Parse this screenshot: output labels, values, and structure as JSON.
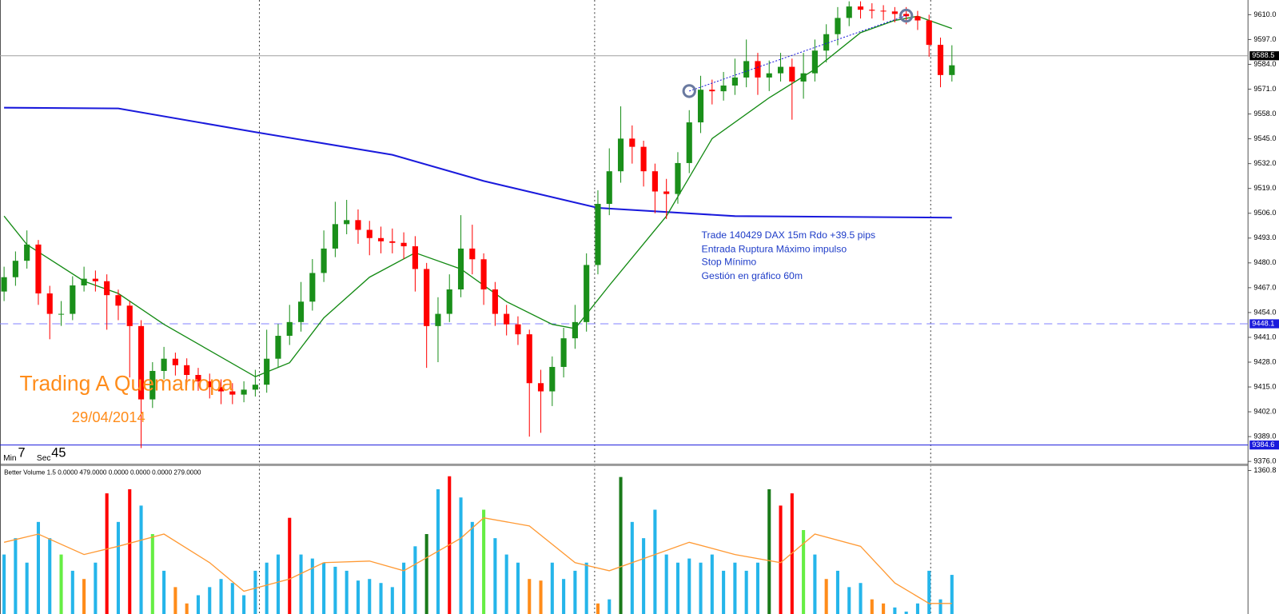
{
  "chart_data": [
    {
      "type": "candlestick",
      "up_color": "#1a8f1a",
      "down_color": "#ff0000",
      "open": [
        9465.0,
        9472.5,
        9481.1,
        9489.6,
        9464.0,
        9453.3,
        9453.3,
        9468.2,
        9471.7,
        9470.4,
        9463.1,
        9457.6,
        9446.9,
        9408.5,
        9423.4,
        9429.8,
        9426.4,
        9421.3,
        9417.9,
        9414.9,
        9412.7,
        9411.0,
        9413.6,
        9416.2,
        9429.8,
        9441.8,
        9449.0,
        9459.7,
        9474.7,
        9487.5,
        9500.3,
        9502.4,
        9497.3,
        9493.0,
        9491.3,
        9490.5,
        9488.7,
        9476.8,
        9446.9,
        9453.3,
        9466.1,
        9487.5,
        9481.9,
        9466.1,
        9453.3,
        9447.8,
        9442.6,
        9417.0,
        9412.7,
        9425.5,
        9440.5,
        9449.0,
        9478.9,
        9510.9,
        9528.0,
        9545.1,
        9540.8,
        9528.0,
        9517.4,
        9516.1,
        9532.3,
        9553.6,
        9570.7,
        9569.9,
        9572.9,
        9577.1,
        9585.7,
        9577.1,
        9579.3,
        9582.7,
        9575.0,
        9579.3,
        9591.2,
        9599.8,
        9608.3,
        9614.3,
        9612.6,
        9612.1,
        9611.7,
        9610.4,
        9609.2,
        9607.0,
        9594.2,
        9578.4
      ],
      "high": [
        9478,
        9486,
        9497,
        9492,
        9468,
        9460,
        9473,
        9478,
        9476,
        9474,
        9466,
        9460,
        9450,
        9428,
        9436,
        9433,
        9430,
        9425,
        9422,
        9419,
        9417,
        9418,
        9424,
        9445,
        9448,
        9458,
        9470,
        9482,
        9497,
        9512,
        9513,
        9508,
        9502,
        9499,
        9498,
        9496,
        9494,
        9480,
        9462,
        9474,
        9505,
        9500,
        9485,
        9470,
        9458,
        9452,
        9445,
        9424,
        9431,
        9446,
        9458,
        9485,
        9518,
        9540,
        9562,
        9552,
        9544,
        9532,
        9524,
        9538,
        9560,
        9578,
        9576,
        9580,
        9587,
        9597,
        9590,
        9586,
        9590,
        9587,
        9590,
        9597,
        9605,
        9614,
        9617,
        9617,
        9616,
        9615,
        9614,
        9614,
        9612,
        9610,
        9598,
        9594
      ],
      "low": [
        9460,
        9468,
        9477,
        9458,
        9440,
        9447,
        9450,
        9465,
        9465,
        9445,
        9450,
        9420,
        9383,
        9404,
        9419,
        9421,
        9416,
        9413,
        9409,
        9406,
        9406,
        9407,
        9410,
        9412,
        9425,
        9437,
        9444,
        9455,
        9470,
        9483,
        9495,
        9490,
        9484,
        9485,
        9485,
        9482,
        9465,
        9425,
        9428,
        9449,
        9462,
        9474,
        9458,
        9447,
        9442,
        9437,
        9389,
        9391,
        9405,
        9420,
        9435,
        9444,
        9474,
        9505,
        9522,
        9532,
        9520,
        9506,
        9503,
        9511,
        9527,
        9548,
        9563,
        9565,
        9568,
        9572,
        9568,
        9570,
        9575,
        9555,
        9566,
        9575,
        9585,
        9594,
        9604,
        9608,
        9608,
        9607,
        9606,
        9605,
        9602,
        9588,
        9572,
        9575
      ],
      "close": [
        9472.5,
        9481.1,
        9489.6,
        9464.0,
        9453.3,
        9453.3,
        9468.2,
        9471.7,
        9470.4,
        9463.1,
        9457.6,
        9446.9,
        9408.5,
        9423.4,
        9429.8,
        9426.4,
        9421.3,
        9417.9,
        9414.9,
        9412.7,
        9411.0,
        9413.6,
        9416.2,
        9429.8,
        9441.8,
        9449.0,
        9459.7,
        9474.7,
        9487.5,
        9500.3,
        9502.4,
        9497.3,
        9493.0,
        9491.3,
        9490.5,
        9488.7,
        9476.8,
        9446.9,
        9453.3,
        9466.1,
        9487.5,
        9481.9,
        9466.1,
        9453.3,
        9447.8,
        9442.6,
        9417.0,
        9412.7,
        9425.5,
        9440.5,
        9449.0,
        9478.9,
        9510.9,
        9528.0,
        9545.1,
        9540.8,
        9528.0,
        9517.4,
        9516.1,
        9532.3,
        9553.6,
        9570.7,
        9569.9,
        9572.9,
        9577.1,
        9585.7,
        9577.1,
        9579.3,
        9582.7,
        9575.0,
        9579.3,
        9591.2,
        9599.8,
        9608.3,
        9614.3,
        9612.6,
        9612.1,
        9611.7,
        9610.4,
        9609.2,
        9607.0,
        9594.2,
        9578.4,
        9583.5
      ],
      "series": [
        {
          "color": "#1a1adc",
          "x": [
            0,
            10,
            22,
            34,
            42,
            52,
            64,
            83
          ],
          "values": [
            9561.3,
            9560.9,
            9548.5,
            9536.6,
            9522.9,
            9508.8,
            9504.5,
            9503.7
          ]
        },
        {
          "color": "#138a13",
          "x": [
            0,
            2,
            7,
            10,
            14,
            18,
            22,
            25,
            28,
            32,
            36,
            40,
            44,
            48,
            50,
            53,
            58,
            62,
            67,
            71,
            75,
            78,
            80,
            81,
            83
          ],
          "values": [
            9504.5,
            9489.6,
            9470.4,
            9464.0,
            9447.8,
            9434.1,
            9420.4,
            9427.7,
            9451.2,
            9472.5,
            9485.3,
            9476.8,
            9459.7,
            9447.8,
            9445.6,
            9468.2,
            9504.5,
            9545.1,
            9566.5,
            9581.4,
            9600.6,
            9607.0,
            9609.2,
            9607.0,
            9602.8
          ]
        }
      ],
      "ylim": [
        9375.1,
        9617.7
      ],
      "yticks": [
        {
          "value": 9376,
          "label": "9376.0"
        },
        {
          "value": 9389,
          "label": "9389.0"
        },
        {
          "value": 9402,
          "label": "9402.0"
        },
        {
          "value": 9415,
          "label": "9415.0"
        },
        {
          "value": 9428,
          "label": "9428.0"
        },
        {
          "value": 9441,
          "label": "9441.0"
        },
        {
          "value": 9454,
          "label": "9454.0"
        },
        {
          "value": 9467,
          "label": "9467.0"
        },
        {
          "value": 9480,
          "label": "9480.0"
        },
        {
          "value": 9493,
          "label": "9493.0"
        },
        {
          "value": 9506,
          "label": "9506.0"
        },
        {
          "value": 9519,
          "label": "9519.0"
        },
        {
          "value": 9532,
          "label": "9532.0"
        },
        {
          "value": 9545,
          "label": "9545.0"
        },
        {
          "value": 9558,
          "label": "9558.0"
        },
        {
          "value": 9571,
          "label": "9571.0"
        },
        {
          "value": 9584,
          "label": "9584.0"
        },
        {
          "value": 9597,
          "label": "9597.0"
        },
        {
          "value": 9610,
          "label": "9610.0"
        }
      ],
      "levels": [
        {
          "value": 9588.5,
          "color": "#a0a0a0",
          "box": "#000000",
          "style": "solid"
        },
        {
          "value": 9448.1,
          "color": "#8080ff",
          "box": "#1a1adc",
          "style": "dashed"
        },
        {
          "value": 9384.6,
          "color": "#1a1adc",
          "box": "#1a1adc",
          "style": "solid"
        }
      ],
      "trade": {
        "entry_index": 60,
        "entry": 9570.0,
        "exit_index": 79,
        "exit": 9609.5,
        "color": "#1a1adc"
      },
      "annotations": [
        "Trade 140429 DAX 15m Rdo +39.5 pips",
        "Entrada Ruptura Máximo impulso",
        "Stop Mínimo",
        "Gestión en gráfico 60m"
      ],
      "watermark": "Trading A Quemarropa",
      "date": "29/04/2014",
      "timer": {
        "min_label": "Min",
        "min": 7,
        "sec_label": "Sec",
        "sec": 45
      }
    },
    {
      "type": "bar",
      "title": "Better Volume 1.5 0.0000 479.0000 0.0000 0.0000 0.0000 279.0000",
      "values": [
        564,
        719,
        487,
        873,
        719,
        564,
        410,
        332,
        487,
        1144,
        873,
        1183,
        1028,
        758,
        410,
        255,
        100,
        178,
        255,
        332,
        294,
        178,
        410,
        487,
        564,
        912,
        564,
        526,
        487,
        448,
        410,
        317,
        332,
        294,
        255,
        487,
        642,
        758,
        1183,
        1306,
        1105,
        873,
        989,
        719,
        564,
        487,
        332,
        317,
        487,
        332,
        410,
        487,
        100,
        139,
        1299,
        873,
        719,
        989,
        564,
        487,
        526,
        487,
        564,
        410,
        487,
        410,
        487,
        1183,
        1028,
        1144,
        796,
        564,
        332,
        410,
        255,
        294,
        139,
        100,
        62,
        23,
        100,
        410,
        139,
        371
      ],
      "colors": [
        "#25b5ea",
        "#25b5ea",
        "#25b5ea",
        "#25b5ea",
        "#25b5ea",
        "#66ee44",
        "#25b5ea",
        "#ff8c1a",
        "#25b5ea",
        "#ff0000",
        "#25b5ea",
        "#ff0000",
        "#25b5ea",
        "#66ee44",
        "#25b5ea",
        "#ff8c1a",
        "#ff8c1a",
        "#25b5ea",
        "#25b5ea",
        "#25b5ea",
        "#25b5ea",
        "#25b5ea",
        "#25b5ea",
        "#25b5ea",
        "#25b5ea",
        "#ff0000",
        "#25b5ea",
        "#25b5ea",
        "#25b5ea",
        "#25b5ea",
        "#25b5ea",
        "#25b5ea",
        "#25b5ea",
        "#25b5ea",
        "#25b5ea",
        "#25b5ea",
        "#25b5ea",
        "#1a7a1a",
        "#25b5ea",
        "#ff0000",
        "#25b5ea",
        "#25b5ea",
        "#66ee44",
        "#25b5ea",
        "#25b5ea",
        "#25b5ea",
        "#ff8c1a",
        "#ff8c1a",
        "#25b5ea",
        "#25b5ea",
        "#25b5ea",
        "#25b5ea",
        "#ff8c1a",
        "#25b5ea",
        "#1a7a1a",
        "#25b5ea",
        "#25b5ea",
        "#25b5ea",
        "#25b5ea",
        "#25b5ea",
        "#25b5ea",
        "#25b5ea",
        "#25b5ea",
        "#25b5ea",
        "#25b5ea",
        "#25b5ea",
        "#25b5ea",
        "#1a7a1a",
        "#ff0000",
        "#ff0000",
        "#66ee44",
        "#25b5ea",
        "#ff8c1a",
        "#25b5ea",
        "#25b5ea",
        "#25b5ea",
        "#ff8c1a",
        "#ff8c1a",
        "#25b5ea",
        "#25b5ea",
        "#25b5ea",
        "#25b5ea",
        "#25b5ea",
        "#25b5ea"
      ],
      "series": [
        {
          "color": "#ff9933",
          "x": [
            0,
            3,
            7,
            10,
            14,
            18,
            21,
            25,
            28,
            32,
            35,
            40,
            42,
            46,
            50,
            53,
            57,
            60,
            64,
            68,
            71,
            75,
            78,
            81,
            83
          ],
          "values": [
            680,
            758,
            564,
            642,
            758,
            487,
            216,
            332,
            487,
            502,
            410,
            719,
            912,
            835,
            487,
            410,
            564,
            680,
            564,
            487,
            758,
            642,
            294,
            100,
            100
          ]
        }
      ],
      "ylim": [
        0,
        1360.8
      ],
      "yticks": [
        1360.8
      ]
    }
  ]
}
